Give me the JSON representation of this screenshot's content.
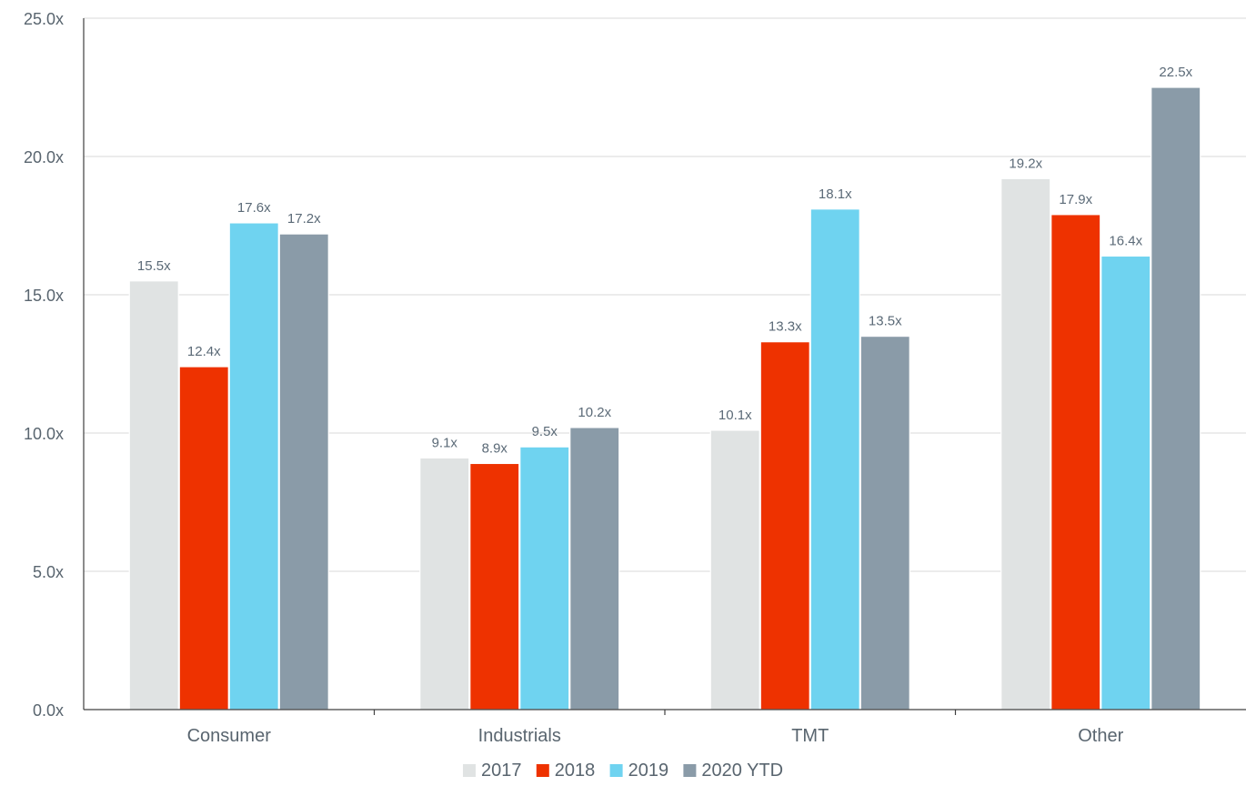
{
  "chart_data": {
    "type": "bar",
    "title": "",
    "xlabel": "",
    "ylabel": "",
    "categories": [
      "Consumer",
      "Industrials",
      "TMT",
      "Other"
    ],
    "series": [
      {
        "name": "2017",
        "color": "#e0e3e3",
        "values": [
          15.5,
          9.1,
          10.1,
          19.2
        ]
      },
      {
        "name": "2018",
        "color": "#ee3200",
        "values": [
          12.4,
          8.9,
          13.3,
          17.9
        ]
      },
      {
        "name": "2019",
        "color": "#6fd3f0",
        "values": [
          17.6,
          9.5,
          18.1,
          16.4
        ]
      },
      {
        "name": "2020 YTD",
        "color": "#8a9ba8",
        "values": [
          17.2,
          10.2,
          13.5,
          22.5
        ]
      }
    ],
    "value_labels": [
      [
        "15.5x",
        "9.1x",
        "10.1x",
        "19.2x"
      ],
      [
        "12.4x",
        "8.9x",
        "13.3x",
        "17.9x"
      ],
      [
        "17.6x",
        "9.5x",
        "18.1x",
        "16.4x"
      ],
      [
        "17.2x",
        "10.2x",
        "13.5x",
        "22.5x"
      ]
    ],
    "ylim": [
      0,
      25
    ],
    "yticks": [
      0,
      5,
      10,
      15,
      20,
      25
    ],
    "ytick_labels": [
      "0.0x",
      "5.0x",
      "10.0x",
      "15.0x",
      "20.0x",
      "25.0x"
    ],
    "grid": true,
    "legend_position": "bottom-center"
  }
}
